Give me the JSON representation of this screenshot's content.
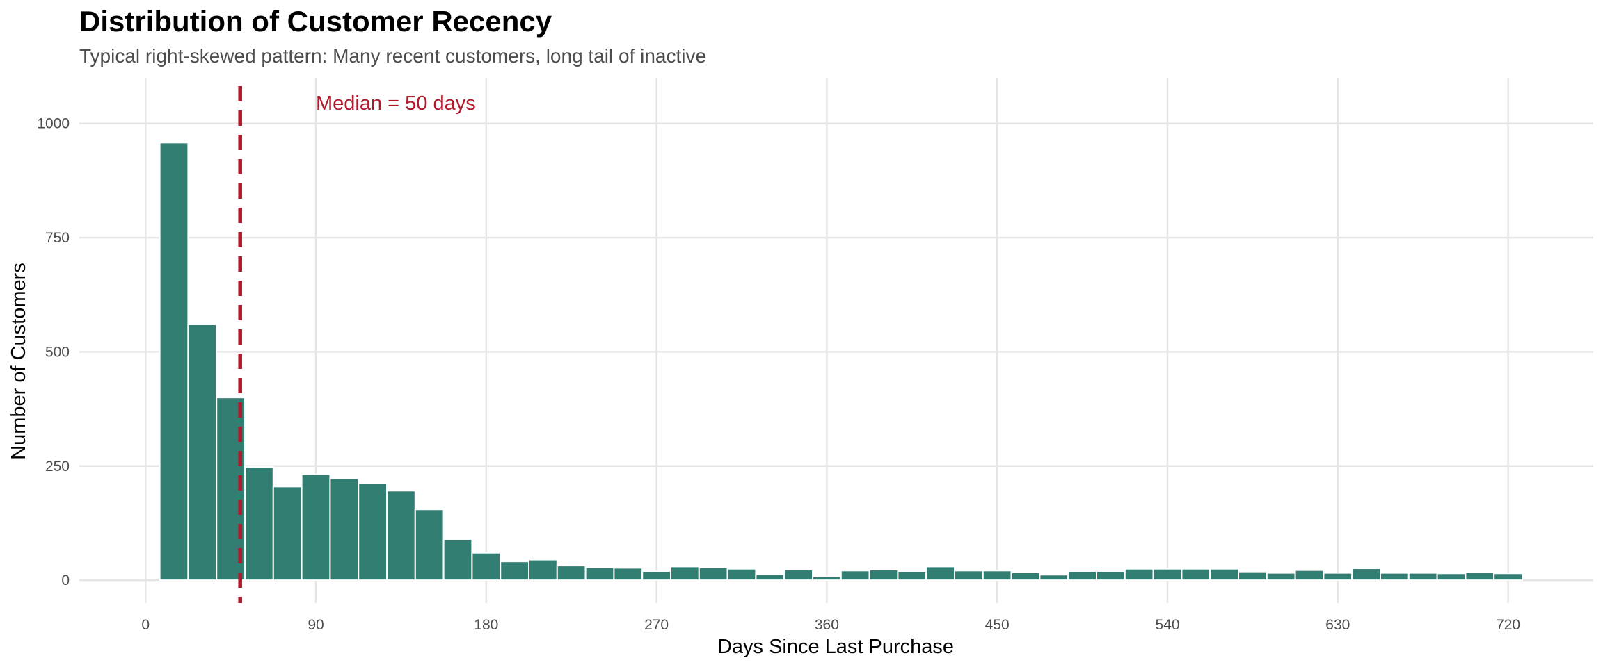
{
  "chart_data": {
    "type": "bar",
    "title": "Distribution of Customer Recency",
    "subtitle": "Typical right-skewed pattern: Many recent customers, long tail of inactive",
    "xlabel": "Days Since Last Purchase",
    "ylabel": "Number of Customers",
    "xlim": [
      -35,
      765
    ],
    "ylim": [
      -50,
      1100
    ],
    "xticks": [
      0,
      90,
      180,
      270,
      360,
      450,
      540,
      630,
      720
    ],
    "yticks": [
      0,
      250,
      500,
      750,
      1000
    ],
    "grid": true,
    "bin_width": 15,
    "x": [
      15,
      30,
      45,
      60,
      75,
      90,
      105,
      120,
      135,
      150,
      165,
      180,
      195,
      210,
      225,
      240,
      255,
      270,
      285,
      300,
      315,
      330,
      345,
      360,
      375,
      390,
      405,
      420,
      435,
      450,
      465,
      480,
      495,
      510,
      525,
      540,
      555,
      570,
      585,
      600,
      615,
      630,
      645,
      660,
      675,
      690,
      705,
      720
    ],
    "values": [
      958,
      560,
      400,
      248,
      205,
      232,
      223,
      213,
      196,
      155,
      90,
      60,
      41,
      45,
      32,
      28,
      27,
      20,
      30,
      28,
      25,
      13,
      23,
      8,
      21,
      23,
      20,
      30,
      21,
      21,
      17,
      12,
      20,
      20,
      25,
      25,
      25,
      25,
      19,
      16,
      22,
      16,
      26,
      16,
      16,
      15,
      18,
      15
    ],
    "bar_color": "#337e73",
    "median_line": {
      "x": 50,
      "color": "#b2182b",
      "style": "dashed",
      "label": "Median = 50 days"
    }
  }
}
